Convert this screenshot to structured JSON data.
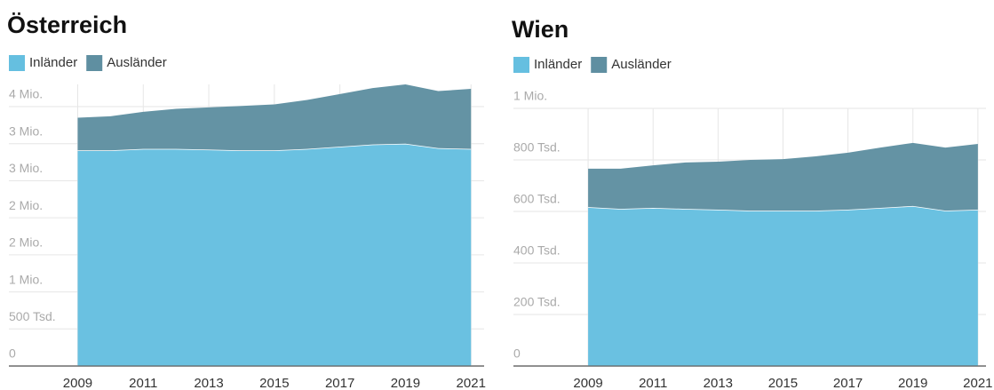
{
  "chart_data": [
    {
      "type": "area",
      "title": "Österreich",
      "x": [
        2009,
        2010,
        2011,
        2012,
        2013,
        2014,
        2015,
        2016,
        2017,
        2018,
        2019,
        2020,
        2021
      ],
      "xlim": [
        2006.9,
        2021.4
      ],
      "xticks": [
        2009,
        2011,
        2013,
        2015,
        2017,
        2019,
        2021
      ],
      "ylim": [
        0,
        3800000
      ],
      "yticks": [
        0,
        {
          "value": 500000,
          "label": "500 Tsd."
        },
        {
          "value": 1000000,
          "label": "1 Mio."
        },
        {
          "value": 1500000,
          "label": "2 Mio."
        },
        {
          "value": 2000000,
          "label": "2 Mio."
        },
        {
          "value": 2500000,
          "label": "3 Mio."
        },
        {
          "value": 3000000,
          "label": "3 Mio."
        },
        {
          "value": 3500000,
          "label": "4 Mio."
        }
      ],
      "stacked": true,
      "grid": true,
      "series": [
        {
          "name": "Inländer",
          "color": "#65bfe0",
          "values": [
            2910000,
            2910000,
            2930000,
            2930000,
            2920000,
            2910000,
            2910000,
            2930000,
            2960000,
            2990000,
            3000000,
            2940000,
            2930000
          ]
        },
        {
          "name": "Ausländer",
          "color": "#5f8fa1",
          "values": [
            440000,
            460000,
            500000,
            540000,
            570000,
            600000,
            620000,
            660000,
            710000,
            760000,
            800000,
            770000,
            810000
          ]
        }
      ]
    },
    {
      "type": "area",
      "title": "Wien",
      "x": [
        2009,
        2010,
        2011,
        2012,
        2013,
        2014,
        2015,
        2016,
        2017,
        2018,
        2019,
        2020,
        2021
      ],
      "xlim": [
        2006.7,
        2021.25
      ],
      "xticks": [
        2009,
        2011,
        2013,
        2015,
        2017,
        2019,
        2021
      ],
      "ylim": [
        0,
        1000000
      ],
      "yticks": [
        0,
        {
          "value": 200000,
          "label": "200 Tsd."
        },
        {
          "value": 400000,
          "label": "400 Tsd."
        },
        {
          "value": 600000,
          "label": "600 Tsd."
        },
        {
          "value": 800000,
          "label": "800 Tsd."
        },
        {
          "value": 1000000,
          "label": "1 Mio."
        }
      ],
      "stacked": true,
      "grid": true,
      "series": [
        {
          "name": "Inländer",
          "color": "#65bfe0",
          "values": [
            617000,
            610000,
            614000,
            610000,
            607000,
            603000,
            603000,
            603000,
            607000,
            614000,
            621000,
            603000,
            607000
          ]
        },
        {
          "name": "Ausländer",
          "color": "#5f8fa1",
          "values": [
            149000,
            156000,
            165000,
            180000,
            186000,
            197000,
            200000,
            211000,
            221000,
            234000,
            245000,
            245000,
            255000
          ]
        }
      ]
    }
  ]
}
